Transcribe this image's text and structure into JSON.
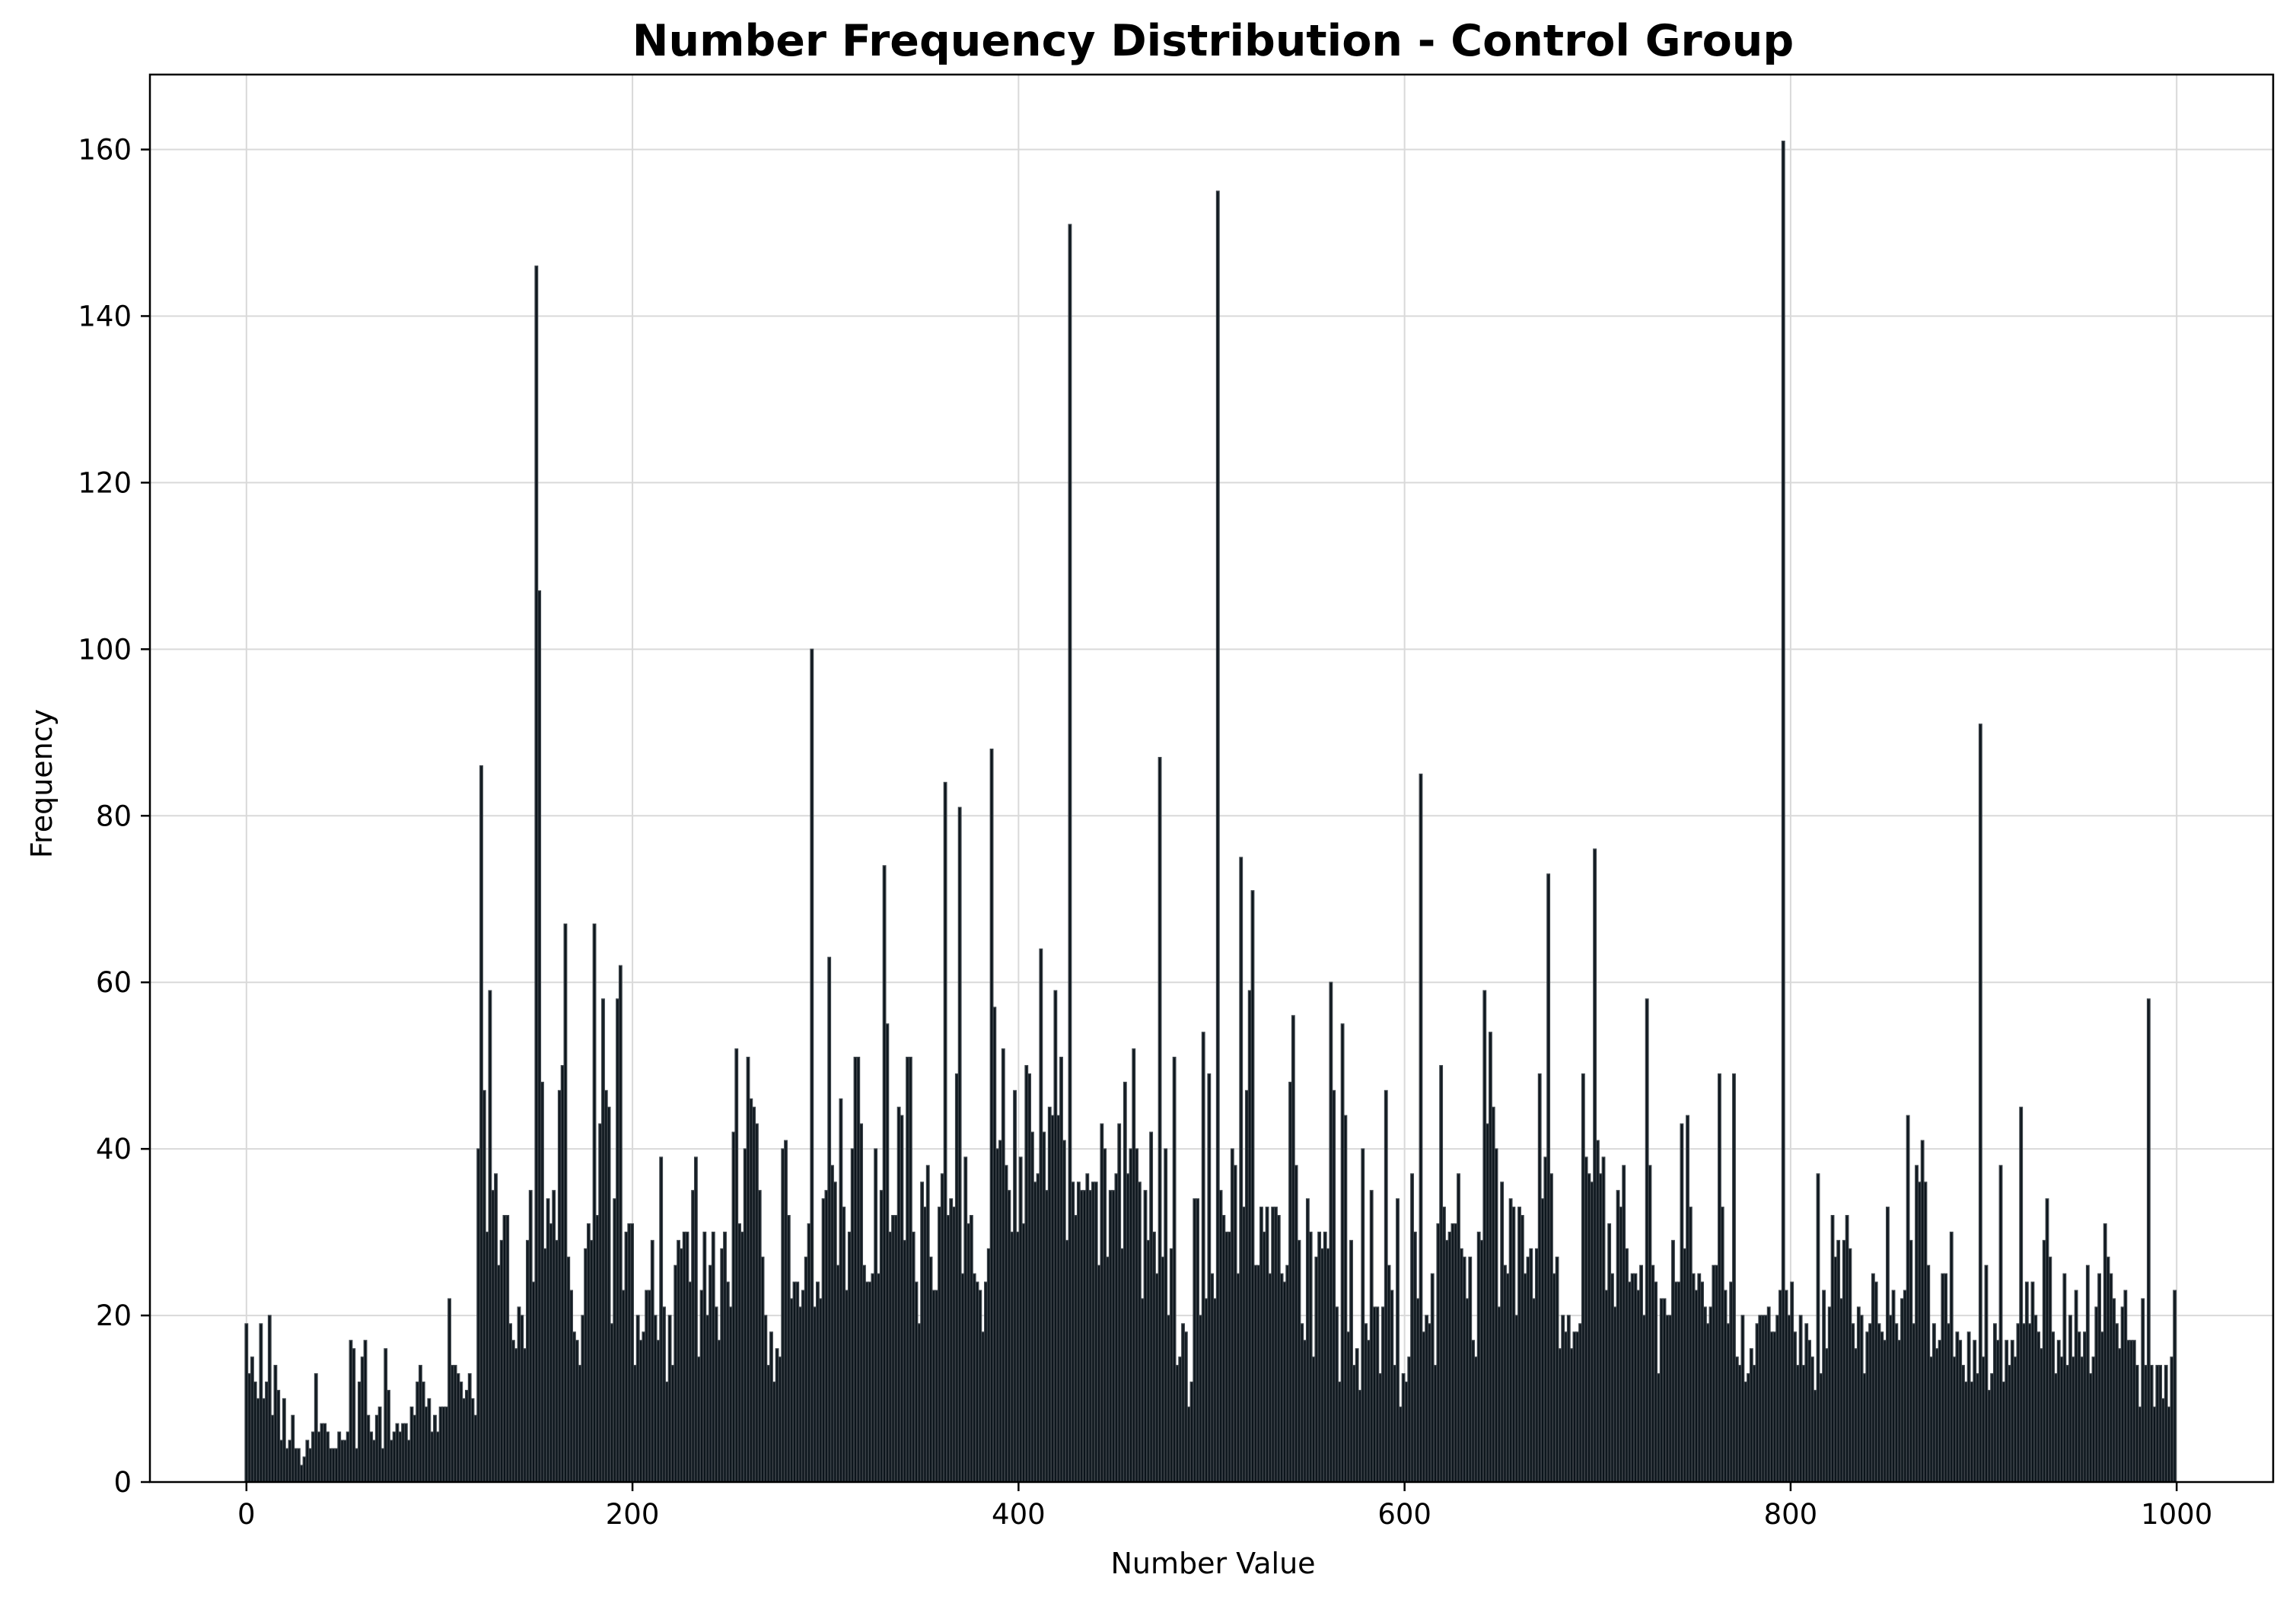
{
  "chart_data": {
    "type": "bar",
    "title": "Number Frequency Distribution - Control Group",
    "xlabel": "Number Value",
    "ylabel": "Frequency",
    "xlim": [
      -50,
      1050
    ],
    "ylim": [
      0,
      169
    ],
    "xticks": [
      0,
      200,
      400,
      600,
      800,
      1000
    ],
    "yticks": [
      0,
      20,
      40,
      60,
      80,
      100,
      120,
      140,
      160
    ],
    "grid": true,
    "bar_color": "#0b141b",
    "bar_edge_color": "#3a4147",
    "x_range": [
      0,
      999
    ],
    "values": [
      19,
      13,
      15,
      12,
      10,
      19,
      10,
      12,
      20,
      8,
      14,
      11,
      5,
      10,
      4,
      5,
      8,
      4,
      4,
      2,
      3,
      5,
      4,
      6,
      13,
      6,
      7,
      7,
      6,
      4,
      4,
      4,
      6,
      5,
      5,
      6,
      17,
      16,
      4,
      12,
      15,
      17,
      8,
      6,
      5,
      8,
      9,
      4,
      16,
      11,
      5,
      6,
      7,
      6,
      7,
      7,
      5,
      9,
      8,
      12,
      14,
      12,
      9,
      10,
      6,
      8,
      6,
      9,
      9,
      9,
      22,
      14,
      14,
      13,
      12,
      10,
      11,
      13,
      10,
      8,
      40,
      86,
      47,
      30,
      59,
      35,
      37,
      26,
      29,
      32,
      32,
      19,
      17,
      16,
      21,
      20,
      16,
      29,
      35,
      24,
      146,
      107,
      48,
      28,
      34,
      31,
      35,
      29,
      47,
      50,
      67,
      27,
      23,
      18,
      17,
      14,
      20,
      28,
      31,
      29,
      67,
      32,
      43,
      58,
      47,
      45,
      19,
      34,
      58,
      62,
      23,
      30,
      31,
      31,
      14,
      20,
      17,
      18,
      23,
      23,
      29,
      20,
      17,
      39,
      21,
      12,
      20,
      14,
      26,
      29,
      28,
      30,
      30,
      24,
      35,
      39,
      15,
      23,
      30,
      20,
      26,
      30,
      21,
      17,
      28,
      30,
      24,
      21,
      42,
      52,
      31,
      30,
      40,
      51,
      46,
      45,
      43,
      35,
      27,
      20,
      14,
      18,
      12,
      16,
      15,
      40,
      41,
      32,
      22,
      24,
      24,
      21,
      23,
      27,
      31,
      100,
      21,
      24,
      22,
      34,
      35,
      63,
      38,
      36,
      26,
      46,
      33,
      23,
      30,
      40,
      51,
      51,
      43,
      26,
      24,
      24,
      25,
      40,
      25,
      35,
      74,
      55,
      30,
      32,
      32,
      45,
      44,
      29,
      51,
      51,
      30,
      24,
      19,
      36,
      33,
      38,
      27,
      23,
      23,
      33,
      37,
      84,
      32,
      34,
      33,
      49,
      81,
      25,
      39,
      31,
      32,
      25,
      24,
      23,
      18,
      24,
      28,
      88,
      57,
      40,
      41,
      52,
      38,
      35,
      30,
      47,
      30,
      39,
      31,
      50,
      49,
      42,
      36,
      37,
      64,
      42,
      35,
      45,
      44,
      59,
      44,
      51,
      41,
      29,
      151,
      36,
      32,
      36,
      35,
      35,
      37,
      35,
      36,
      36,
      26,
      43,
      40,
      27,
      35,
      35,
      37,
      43,
      28,
      48,
      37,
      40,
      52,
      40,
      36,
      22,
      35,
      29,
      42,
      30,
      25,
      87,
      27,
      40,
      20,
      28,
      51,
      14,
      15,
      19,
      18,
      9,
      12,
      34,
      34,
      20,
      54,
      22,
      49,
      25,
      22,
      155,
      35,
      32,
      30,
      30,
      40,
      38,
      25,
      75,
      33,
      47,
      59,
      71,
      26,
      26,
      33,
      30,
      33,
      25,
      33,
      33,
      32,
      25,
      24,
      26,
      48,
      56,
      38,
      29,
      19,
      17,
      34,
      30,
      15,
      27,
      30,
      28,
      30,
      28,
      60,
      47,
      21,
      12,
      55,
      44,
      18,
      29,
      14,
      16,
      11,
      40,
      19,
      17,
      35,
      21,
      21,
      13,
      21,
      47,
      26,
      23,
      14,
      34,
      9,
      13,
      12,
      15,
      37,
      30,
      22,
      85,
      18,
      20,
      19,
      25,
      14,
      31,
      50,
      33,
      29,
      30,
      31,
      31,
      37,
      28,
      27,
      22,
      27,
      17,
      15,
      30,
      29,
      59,
      43,
      54,
      45,
      40,
      21,
      36,
      26,
      25,
      34,
      33,
      20,
      33,
      32,
      25,
      27,
      28,
      22,
      28,
      49,
      34,
      39,
      73,
      37,
      25,
      27,
      16,
      20,
      18,
      20,
      16,
      18,
      18,
      19,
      49,
      39,
      37,
      36,
      76,
      41,
      37,
      39,
      23,
      31,
      25,
      21,
      35,
      33,
      38,
      28,
      24,
      25,
      25,
      23,
      26,
      20,
      58,
      38,
      26,
      24,
      13,
      22,
      22,
      20,
      20,
      29,
      24,
      24,
      43,
      28,
      44,
      33,
      25,
      23,
      25,
      24,
      21,
      19,
      21,
      26,
      26,
      49,
      33,
      23,
      19,
      24,
      49,
      15,
      14,
      20,
      12,
      13,
      16,
      14,
      19,
      20,
      20,
      20,
      21,
      18,
      18,
      20,
      23,
      161,
      23,
      20,
      24,
      18,
      14,
      20,
      14,
      19,
      17,
      15,
      11,
      37,
      13,
      23,
      16,
      21,
      32,
      27,
      29,
      22,
      29,
      32,
      28,
      19,
      16,
      21,
      20,
      13,
      18,
      19,
      25,
      24,
      19,
      18,
      17,
      33,
      20,
      23,
      19,
      17,
      22,
      23,
      44,
      29,
      19,
      38,
      36,
      41,
      36,
      26,
      15,
      19,
      16,
      17,
      25,
      25,
      19,
      30,
      15,
      18,
      17,
      14,
      12,
      18,
      12,
      17,
      13,
      91,
      15,
      26,
      11,
      13,
      19,
      17,
      38,
      12,
      17,
      14,
      17,
      15,
      19,
      45,
      19,
      24,
      19,
      24,
      20,
      18,
      16,
      29,
      34,
      27,
      18,
      13,
      17,
      15,
      25,
      14,
      20,
      15,
      23,
      18,
      15,
      18,
      26,
      13,
      15,
      21,
      25,
      18,
      31,
      27,
      25,
      22,
      19,
      16,
      21,
      23,
      17,
      17,
      17,
      14,
      9,
      22,
      14,
      58,
      14,
      9,
      14,
      14,
      10,
      14,
      9,
      15,
      23
    ],
    "values_1_999_note": ""
  }
}
